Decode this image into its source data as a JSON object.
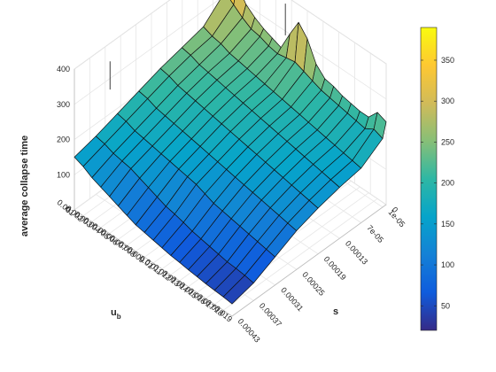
{
  "chart_data": {
    "type": "surface3d",
    "zlabel": "average collapse time",
    "xlabel_main": "u",
    "xlabel_sub": "b",
    "ylabel": "s",
    "u_ticks": [
      "0.001",
      "0.002",
      "0.003",
      "0.004",
      "0.005",
      "0.006",
      "0.007",
      "0.008",
      "0.009",
      "0.01",
      "0.011",
      "0.012",
      "0.013",
      "0.014",
      "0.015",
      "0.016",
      "0.017",
      "0.018",
      "0.019"
    ],
    "s_ticks": [
      "0",
      "1e-05",
      "7e-05",
      "0.00013",
      "0.00019",
      "0.00025",
      "0.00031",
      "0.00037",
      "0.00043"
    ],
    "s_values": [
      0,
      1e-05,
      7e-05,
      0.00013,
      0.00019,
      0.00025,
      0.00031,
      0.00037,
      0.00043
    ],
    "z_ticks": [
      0,
      100,
      200,
      300,
      400
    ],
    "zlim": [
      0,
      400
    ],
    "colorbar": {
      "ticks": [
        50,
        100,
        150,
        200,
        250,
        300,
        350
      ],
      "clim": [
        20,
        390
      ]
    },
    "z": [
      [
        395,
        310,
        255,
        240,
        225,
        205,
        185,
        165,
        150
      ],
      [
        340,
        290,
        245,
        235,
        220,
        200,
        180,
        160,
        140
      ],
      [
        300,
        270,
        240,
        225,
        210,
        190,
        170,
        150,
        125
      ],
      [
        280,
        255,
        230,
        220,
        205,
        185,
        165,
        145,
        115
      ],
      [
        265,
        250,
        225,
        215,
        200,
        180,
        160,
        140,
        105
      ],
      [
        255,
        240,
        220,
        210,
        195,
        175,
        155,
        130,
        95
      ],
      [
        245,
        235,
        215,
        205,
        190,
        170,
        150,
        120,
        85
      ],
      [
        300,
        240,
        210,
        200,
        185,
        165,
        145,
        110,
        75
      ],
      [
        350,
        245,
        205,
        195,
        180,
        160,
        140,
        100,
        70
      ],
      [
        320,
        235,
        200,
        190,
        175,
        155,
        135,
        95,
        65
      ],
      [
        265,
        225,
        195,
        185,
        170,
        150,
        125,
        88,
        60
      ],
      [
        240,
        215,
        190,
        180,
        165,
        145,
        115,
        80,
        55
      ],
      [
        235,
        210,
        185,
        175,
        160,
        140,
        110,
        75,
        52
      ],
      [
        225,
        205,
        180,
        170,
        155,
        135,
        105,
        70,
        48
      ],
      [
        220,
        200,
        175,
        165,
        150,
        130,
        100,
        65,
        45
      ],
      [
        215,
        195,
        170,
        160,
        145,
        125,
        95,
        60,
        42
      ],
      [
        215,
        190,
        165,
        155,
        140,
        120,
        90,
        58,
        40
      ],
      [
        245,
        205,
        160,
        150,
        135,
        115,
        85,
        55,
        38
      ],
      [
        235,
        195,
        155,
        145,
        130,
        110,
        80,
        50,
        35
      ]
    ]
  }
}
